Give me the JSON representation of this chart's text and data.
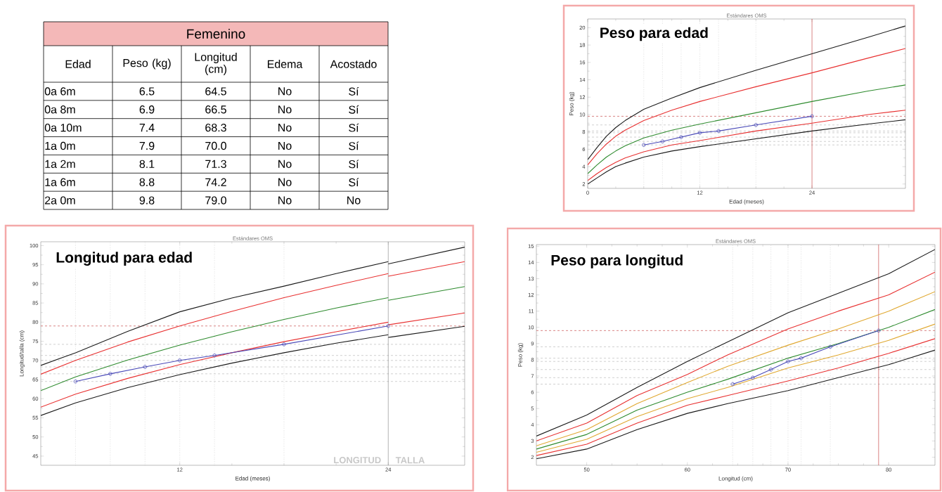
{
  "chart_data": [
    {
      "type": "other",
      "title": "Femenino",
      "annotations": [
        "Edad",
        "Peso (kg)",
        "Longitud (cm)",
        "Edema",
        "Acostado",
        "0a 6m",
        "6.5",
        "64.5",
        "No",
        "Sí",
        "0a 8m",
        "6.9",
        "66.5",
        "No",
        "Sí",
        "0a 10m",
        "7.4",
        "68.3",
        "No",
        "Sí",
        "1a 0m",
        "7.9",
        "70.0",
        "No",
        "Sí",
        "1a 2m",
        "8.1",
        "71.3",
        "No",
        "Sí",
        "1a 6m",
        "8.8",
        "74.2",
        "No",
        "Sí",
        "2a 0m",
        "9.8",
        "79.0",
        "No",
        "No"
      ]
    },
    {
      "type": "line",
      "title": "Peso para edad",
      "subtitle": "Estándares OMS",
      "xlabel": "Edad (meses)",
      "ylabel": "Peso (kg)",
      "xlim": [
        0,
        34
      ],
      "ylim": [
        1.5,
        21
      ],
      "xticks": [
        0,
        12,
        24
      ],
      "yticks": [
        2,
        4,
        6,
        8,
        10,
        12,
        14,
        16,
        18,
        20
      ],
      "x": [
        0,
        1,
        2,
        3,
        4,
        6,
        9,
        12,
        18,
        24,
        30,
        34
      ],
      "series": [
        {
          "color": "#1a1a1a",
          "values": [
            4.8,
            6.2,
            7.5,
            8.5,
            9.3,
            10.6,
            11.9,
            13.1,
            15.1,
            17.0,
            18.9,
            20.2
          ]
        },
        {
          "color": "#e83030",
          "values": [
            4.2,
            5.5,
            6.6,
            7.5,
            8.2,
            9.3,
            10.5,
            11.5,
            13.2,
            14.8,
            16.5,
            17.6
          ]
        },
        {
          "color": "#2e8b2e",
          "values": [
            3.2,
            4.2,
            5.1,
            5.8,
            6.4,
            7.3,
            8.2,
            8.9,
            10.2,
            11.5,
            12.7,
            13.4
          ]
        },
        {
          "color": "#e83030",
          "values": [
            2.4,
            3.2,
            3.9,
            4.5,
            5.0,
            5.7,
            6.5,
            7.0,
            8.1,
            9.0,
            10.0,
            10.5
          ]
        },
        {
          "color": "#1a1a1a",
          "values": [
            2.0,
            2.7,
            3.4,
            4.0,
            4.4,
            5.1,
            5.8,
            6.3,
            7.2,
            8.1,
            8.9,
            9.4
          ]
        },
        {
          "color": "#4a4ab8",
          "marker": "circle",
          "x": [
            6,
            8,
            10,
            12,
            14,
            18,
            24
          ],
          "values": [
            6.5,
            6.9,
            7.4,
            7.9,
            8.1,
            8.8,
            9.8
          ]
        }
      ],
      "ref_lines": [
        {
          "axis": "x",
          "value": 6,
          "color": "#b0b0b0",
          "line_style": "dotted"
        },
        {
          "axis": "x",
          "value": 8,
          "color": "#b0b0b0",
          "line_style": "dotted"
        },
        {
          "axis": "x",
          "value": 10,
          "color": "#b0b0b0",
          "line_style": "dotted"
        },
        {
          "axis": "x",
          "value": 12,
          "color": "#b0b0b0",
          "line_style": "dotted"
        },
        {
          "axis": "x",
          "value": 14,
          "color": "#b0b0b0",
          "line_style": "dotted"
        },
        {
          "axis": "x",
          "value": 18,
          "color": "#b0b0b0",
          "line_style": "dotted"
        },
        {
          "axis": "y",
          "value": 6.5,
          "color": "#b0b0b0",
          "line_style": "dashed"
        },
        {
          "axis": "y",
          "value": 6.9,
          "color": "#b0b0b0",
          "line_style": "dashed"
        },
        {
          "axis": "y",
          "value": 7.4,
          "color": "#b0b0b0",
          "line_style": "dashed"
        },
        {
          "axis": "y",
          "value": 7.9,
          "color": "#b0b0b0",
          "line_style": "dashed"
        },
        {
          "axis": "y",
          "value": 8.1,
          "color": "#b0b0b0",
          "line_style": "dashed"
        },
        {
          "axis": "y",
          "value": 8.8,
          "color": "#b0b0b0",
          "line_style": "dashed"
        },
        {
          "axis": "y",
          "value": 9.8,
          "color": "#c03030",
          "line_style": "dashed"
        },
        {
          "axis": "x",
          "value": 24,
          "color": "#c03030",
          "line_style": "solid"
        }
      ]
    },
    {
      "type": "line",
      "subtitle": "Estándares OMS",
      "title": "Longitud para edad",
      "xlabel": "Edad (meses)",
      "ylabel": "Longitud/talla (cm)",
      "xlim": [
        4,
        28.4
      ],
      "ylim": [
        42.6,
        101
      ],
      "xticks": [
        12,
        24
      ],
      "yticks": [
        45,
        50,
        55,
        60,
        65,
        70,
        75,
        80,
        85,
        90,
        95,
        100
      ],
      "x": [
        4,
        6,
        9,
        12,
        15,
        18,
        21,
        24
      ],
      "series": [
        {
          "color": "#1a1a1a",
          "values": [
            68.7,
            72.0,
            77.6,
            82.7,
            86.3,
            89.4,
            92.7,
            95.8
          ]
        },
        {
          "color": "#e83030",
          "values": [
            66.4,
            70.0,
            74.8,
            79.0,
            82.8,
            86.4,
            89.6,
            92.7
          ]
        },
        {
          "color": "#2e8b2e",
          "values": [
            62.1,
            65.7,
            70.1,
            74.0,
            77.5,
            80.7,
            83.7,
            86.4
          ]
        },
        {
          "color": "#e83030",
          "values": [
            57.8,
            61.2,
            65.3,
            68.9,
            72.0,
            74.9,
            77.5,
            80.0
          ]
        },
        {
          "color": "#1a1a1a",
          "values": [
            55.6,
            58.9,
            62.9,
            66.3,
            69.3,
            72.0,
            74.5,
            76.7
          ]
        },
        {
          "color": "#1a1a1a",
          "x": [
            24,
            28.4
          ],
          "values": [
            95.2,
            99.6
          ]
        },
        {
          "color": "#e83030",
          "x": [
            24,
            28.4
          ],
          "values": [
            92.0,
            95.8
          ]
        },
        {
          "color": "#2e8b2e",
          "x": [
            24,
            28.4
          ],
          "values": [
            85.7,
            89.3
          ]
        },
        {
          "color": "#e83030",
          "x": [
            24,
            28.4
          ],
          "values": [
            79.3,
            82.4
          ]
        },
        {
          "color": "#1a1a1a",
          "x": [
            24,
            28.4
          ],
          "values": [
            76.0,
            78.9
          ]
        },
        {
          "color": "#4a4ab8",
          "marker": "circle",
          "x": [
            6,
            8,
            10,
            12,
            14,
            18,
            24
          ],
          "values": [
            64.5,
            66.5,
            68.3,
            70.0,
            71.3,
            74.2,
            79.0
          ]
        }
      ],
      "ref_lines": [
        {
          "axis": "x",
          "value": 6,
          "color": "#b0b0b0",
          "line_style": "dotted"
        },
        {
          "axis": "x",
          "value": 8,
          "color": "#b0b0b0",
          "line_style": "dotted"
        },
        {
          "axis": "x",
          "value": 10,
          "color": "#b0b0b0",
          "line_style": "dotted"
        },
        {
          "axis": "x",
          "value": 12,
          "color": "#b0b0b0",
          "line_style": "dotted"
        },
        {
          "axis": "x",
          "value": 14,
          "color": "#b0b0b0",
          "line_style": "dotted"
        },
        {
          "axis": "x",
          "value": 18,
          "color": "#b0b0b0",
          "line_style": "dotted"
        },
        {
          "axis": "y",
          "value": 64.5,
          "color": "#b0b0b0",
          "line_style": "dashed"
        },
        {
          "axis": "y",
          "value": 66.5,
          "color": "#b0b0b0",
          "line_style": "dashed"
        },
        {
          "axis": "y",
          "value": 68.3,
          "color": "#b0b0b0",
          "line_style": "dashed"
        },
        {
          "axis": "y",
          "value": 70.0,
          "color": "#b0b0b0",
          "line_style": "dashed"
        },
        {
          "axis": "y",
          "value": 71.3,
          "color": "#b0b0b0",
          "line_style": "dashed"
        },
        {
          "axis": "y",
          "value": 74.2,
          "color": "#b0b0b0",
          "line_style": "dashed"
        },
        {
          "axis": "y",
          "value": 79.0,
          "color": "#c03030",
          "line_style": "dashed"
        },
        {
          "axis": "x",
          "value": 24,
          "color": "#808080",
          "line_style": "solid"
        }
      ],
      "annotations": [
        "LONGITUD",
        "TALLA"
      ]
    },
    {
      "type": "line",
      "subtitle": "Estándares OMS",
      "title": "Peso para longitud",
      "xlabel": "Longitud (cm)",
      "ylabel": "Peso (kg)",
      "xlim": [
        45,
        84.6
      ],
      "ylim": [
        1.5,
        15.1
      ],
      "xticks": [
        50,
        60,
        70,
        80
      ],
      "yticks": [
        2,
        3,
        4,
        5,
        6,
        7,
        8,
        9,
        10,
        11,
        12,
        13,
        14,
        15
      ],
      "x": [
        45,
        50,
        55,
        60,
        64,
        70,
        75,
        80,
        84.6
      ],
      "series": [
        {
          "color": "#1a1a1a",
          "values": [
            3.3,
            4.6,
            6.3,
            7.9,
            9.1,
            10.9,
            12.1,
            13.3,
            14.8
          ]
        },
        {
          "color": "#e83030",
          "values": [
            3.0,
            4.1,
            5.8,
            7.1,
            8.3,
            9.9,
            11.0,
            12.0,
            13.4
          ]
        },
        {
          "color": "#e0a830",
          "values": [
            2.7,
            3.7,
            5.3,
            6.6,
            7.6,
            8.9,
            9.9,
            11.0,
            12.2
          ]
        },
        {
          "color": "#2e8b2e",
          "values": [
            2.5,
            3.4,
            4.9,
            6.0,
            6.8,
            8.1,
            9.0,
            10.0,
            11.1
          ]
        },
        {
          "color": "#e0a830",
          "values": [
            2.3,
            3.1,
            4.5,
            5.6,
            6.3,
            7.5,
            8.3,
            9.2,
            10.2
          ]
        },
        {
          "color": "#e83030",
          "values": [
            2.1,
            2.8,
            4.1,
            5.2,
            5.8,
            6.7,
            7.5,
            8.4,
            9.3
          ]
        },
        {
          "color": "#1a1a1a",
          "values": [
            1.9,
            2.5,
            3.7,
            4.7,
            5.3,
            6.1,
            6.9,
            7.7,
            8.6
          ]
        },
        {
          "color": "#4a4ab8",
          "marker": "circle",
          "x": [
            64.5,
            66.5,
            68.3,
            70.0,
            71.3,
            74.2,
            79.0
          ],
          "values": [
            6.5,
            6.9,
            7.4,
            7.9,
            8.1,
            8.8,
            9.8
          ]
        }
      ],
      "ref_lines": [
        {
          "axis": "x",
          "value": 64.5,
          "color": "#b0b0b0",
          "line_style": "dotted"
        },
        {
          "axis": "x",
          "value": 66.5,
          "color": "#b0b0b0",
          "line_style": "dotted"
        },
        {
          "axis": "x",
          "value": 68.3,
          "color": "#b0b0b0",
          "line_style": "dotted"
        },
        {
          "axis": "x",
          "value": 70.0,
          "color": "#b0b0b0",
          "line_style": "dotted"
        },
        {
          "axis": "x",
          "value": 71.3,
          "color": "#b0b0b0",
          "line_style": "dotted"
        },
        {
          "axis": "x",
          "value": 74.2,
          "color": "#b0b0b0",
          "line_style": "dotted"
        },
        {
          "axis": "y",
          "value": 6.5,
          "color": "#b0b0b0",
          "line_style": "dashed"
        },
        {
          "axis": "y",
          "value": 6.9,
          "color": "#b0b0b0",
          "line_style": "dashed"
        },
        {
          "axis": "y",
          "value": 7.4,
          "color": "#b0b0b0",
          "line_style": "dashed"
        },
        {
          "axis": "y",
          "value": 7.9,
          "color": "#b0b0b0",
          "line_style": "dashed"
        },
        {
          "axis": "y",
          "value": 8.1,
          "color": "#b0b0b0",
          "line_style": "dashed"
        },
        {
          "axis": "y",
          "value": 8.8,
          "color": "#b0b0b0",
          "line_style": "dashed"
        },
        {
          "axis": "y",
          "value": 9.8,
          "color": "#c03030",
          "line_style": "dashed"
        },
        {
          "axis": "x",
          "value": 79.0,
          "color": "#c03030",
          "line_style": "solid"
        }
      ]
    }
  ]
}
